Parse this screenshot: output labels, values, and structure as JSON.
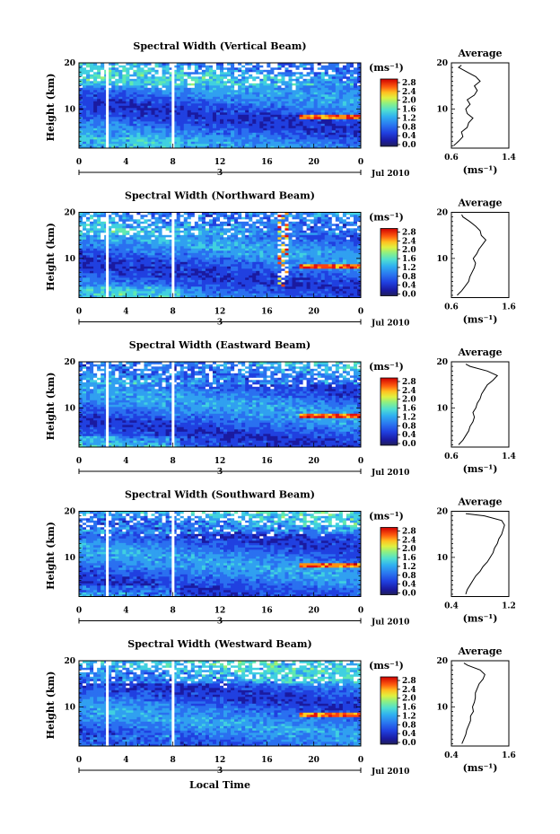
{
  "figure": {
    "xlabel": "Local Time",
    "date_label": "Jul 2010",
    "day_label": "3",
    "x_ticks": [
      "0",
      "4",
      "8",
      "12",
      "16",
      "20",
      "0"
    ],
    "colorbar_unit": "(ms⁻¹)",
    "colorbar_ticks": [
      "2.8",
      "2.4",
      "2.0",
      "1.6",
      "1.2",
      "0.8",
      "0.4",
      "0.0"
    ],
    "avg_title": "Average",
    "avg_xlabel": "(ms⁻¹)",
    "height_ticks": [
      "20",
      "10"
    ],
    "ylabel": "Height (km)",
    "colors": {
      "scale": [
        "#222255",
        "#1a1aa0",
        "#2040e0",
        "#2a70f0",
        "#30a0f0",
        "#40d0e0",
        "#60e8b0",
        "#a0f070",
        "#e0f040",
        "#ffd020",
        "#ff9010",
        "#ff4010",
        "#e01010",
        "#c00000"
      ]
    }
  },
  "chart_data": [
    {
      "type": "heatmap",
      "title": "Spectral Width (Vertical Beam)",
      "xlim": [
        0,
        24
      ],
      "ylim": [
        1.5,
        20
      ],
      "zlim": [
        0.0,
        3.0
      ],
      "avg_xlim": [
        0.6,
        1.4
      ],
      "avg_ticks": [
        "0.6",
        "1.4"
      ],
      "avg_profile": {
        "height": [
          2,
          3,
          4,
          5,
          6,
          7,
          8,
          9,
          10,
          11,
          12,
          13,
          14,
          15,
          16,
          17,
          18,
          19,
          19.5
        ],
        "value": [
          0.63,
          0.7,
          0.76,
          0.74,
          0.82,
          0.84,
          0.9,
          0.82,
          0.8,
          0.86,
          0.82,
          0.92,
          0.96,
          0.92,
          1.0,
          0.94,
          0.82,
          0.7,
          0.74
        ]
      }
    },
    {
      "type": "heatmap",
      "title": "Spectral Width (Northward Beam)",
      "xlim": [
        0,
        24
      ],
      "ylim": [
        1.5,
        20
      ],
      "zlim": [
        0.0,
        3.0
      ],
      "avg_xlim": [
        0.6,
        1.6
      ],
      "avg_ticks": [
        "0.6",
        "1.6"
      ],
      "avg_profile": {
        "height": [
          2,
          3,
          4,
          5,
          6,
          7,
          8,
          9,
          10,
          11,
          12,
          13,
          14,
          15,
          16,
          17,
          18,
          19,
          19.5
        ],
        "value": [
          0.7,
          0.78,
          0.84,
          0.9,
          0.92,
          0.96,
          1.0,
          1.02,
          0.98,
          1.04,
          1.08,
          1.14,
          1.2,
          1.12,
          1.1,
          1.02,
          0.92,
          0.8,
          0.78
        ]
      }
    },
    {
      "type": "heatmap",
      "title": "Spectral Width (Eastward Beam)",
      "xlim": [
        0,
        24
      ],
      "ylim": [
        1.5,
        20
      ],
      "zlim": [
        0.0,
        3.0
      ],
      "avg_xlim": [
        0.6,
        1.4
      ],
      "avg_ticks": [
        "0.6",
        "1.4"
      ],
      "avg_profile": {
        "height": [
          2,
          3,
          4,
          5,
          6,
          7,
          8,
          9,
          10,
          11,
          12,
          13,
          14,
          15,
          16,
          17,
          18,
          19,
          19.5
        ],
        "value": [
          0.7,
          0.76,
          0.8,
          0.84,
          0.86,
          0.9,
          0.92,
          0.9,
          0.94,
          0.96,
          1.0,
          1.02,
          1.06,
          1.1,
          1.18,
          1.24,
          1.1,
          0.86,
          0.8
        ]
      }
    },
    {
      "type": "heatmap",
      "title": "Spectral Width (Southward Beam)",
      "xlim": [
        0,
        24
      ],
      "ylim": [
        1.5,
        20
      ],
      "zlim": [
        0.0,
        3.0
      ],
      "avg_xlim": [
        0.4,
        1.2
      ],
      "avg_ticks": [
        "0.4",
        "1.2"
      ],
      "avg_profile": {
        "height": [
          2,
          3,
          4,
          5,
          6,
          7,
          8,
          9,
          10,
          11,
          12,
          13,
          14,
          15,
          16,
          17,
          18,
          19,
          19.5
        ],
        "value": [
          0.6,
          0.62,
          0.66,
          0.7,
          0.74,
          0.8,
          0.84,
          0.9,
          0.94,
          0.98,
          1.0,
          1.04,
          1.06,
          1.1,
          1.12,
          1.14,
          1.1,
          0.86,
          0.6
        ]
      }
    },
    {
      "type": "heatmap",
      "title": "Spectral Width (Westward Beam)",
      "xlim": [
        0,
        24
      ],
      "ylim": [
        1.5,
        20
      ],
      "zlim": [
        0.0,
        3.0
      ],
      "avg_xlim": [
        0.4,
        1.6
      ],
      "avg_ticks": [
        "0.4",
        "1.6"
      ],
      "avg_profile": {
        "height": [
          2,
          3,
          4,
          5,
          6,
          7,
          8,
          9,
          10,
          11,
          12,
          13,
          14,
          15,
          16,
          17,
          18,
          19,
          19.5
        ],
        "value": [
          0.62,
          0.66,
          0.7,
          0.72,
          0.76,
          0.8,
          0.8,
          0.86,
          0.84,
          0.88,
          0.9,
          0.9,
          0.94,
          0.98,
          1.06,
          1.1,
          1.0,
          0.74,
          0.66
        ]
      }
    }
  ]
}
